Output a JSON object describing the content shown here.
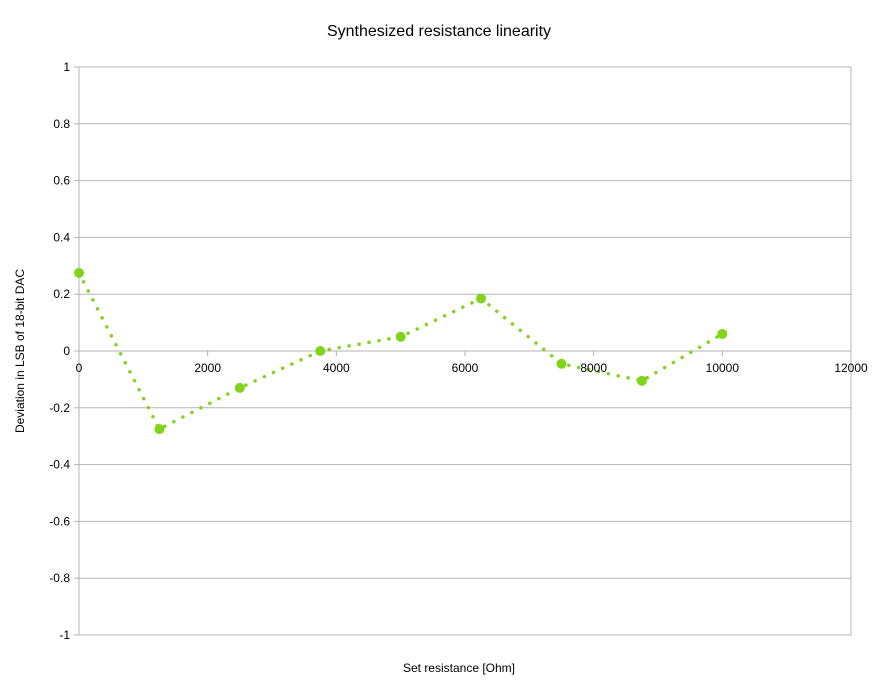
{
  "chart_data": {
    "type": "scatter",
    "title": "Synthesized resistance linearity",
    "xlabel": "Set resistance [Ohm]",
    "ylabel": "Deviation in LSB of 18-bit DAC",
    "xlim": [
      0,
      12000
    ],
    "ylim": [
      -1,
      1
    ],
    "x_ticks": [
      0,
      2000,
      4000,
      6000,
      8000,
      10000,
      12000
    ],
    "y_ticks": [
      1,
      0.8,
      0.6,
      0.4,
      0.2,
      0,
      -0.2,
      -0.4,
      -0.6,
      -0.8,
      -1
    ],
    "x_tick_labels": [
      "0",
      "2000",
      "4000",
      "6000",
      "8000",
      "10000",
      "12000"
    ],
    "y_tick_labels": [
      "1",
      "0.8",
      "0.6",
      "0.4",
      "0.2",
      "0",
      "-0.2",
      "-0.4",
      "-0.6",
      "-0.8",
      "-1"
    ],
    "grid": true,
    "legend": "none",
    "series": [
      {
        "color": "#81d41a",
        "line_style": "dotted",
        "x": [
          0,
          1250,
          2500,
          3750,
          5000,
          6250,
          7500,
          8750,
          10000
        ],
        "y": [
          0.275,
          -0.275,
          -0.13,
          0.0,
          0.05,
          0.185,
          -0.045,
          -0.105,
          0.06
        ]
      }
    ]
  }
}
